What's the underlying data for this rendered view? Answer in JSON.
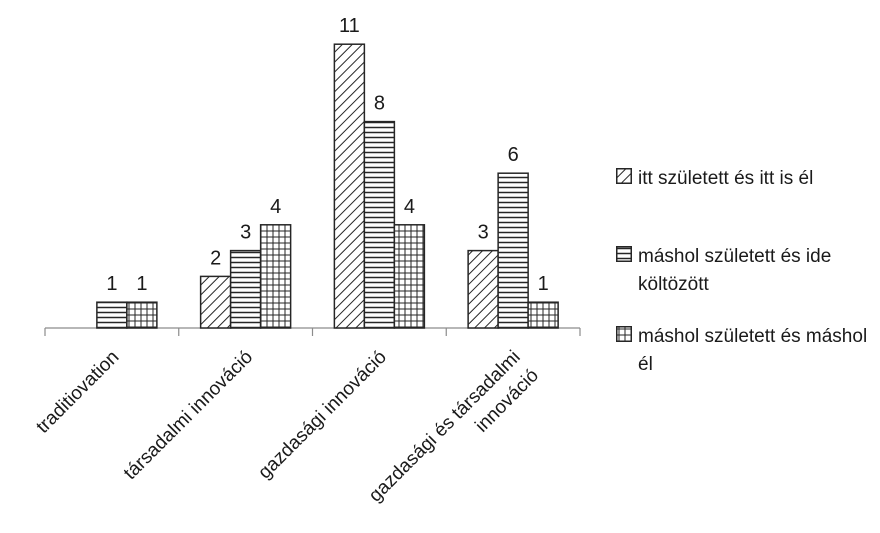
{
  "chart_data": {
    "type": "bar",
    "title": "",
    "xlabel": "",
    "ylabel": "",
    "ylim": [
      0,
      11
    ],
    "grid": false,
    "legend_position": "right",
    "categories": [
      "traditiovation",
      "társadalmi innováció",
      "gazdasági innováció",
      "gazdasági és társadalmi innováció"
    ],
    "category_label_lines": [
      [
        "traditiovation"
      ],
      [
        "társadalmi innováció"
      ],
      [
        "gazdasági innováció"
      ],
      [
        "gazdasági és társadalmi",
        "innováció"
      ]
    ],
    "series": [
      {
        "name": "itt született és itt is él",
        "pattern": "diagonal",
        "values": [
          null,
          2,
          11,
          3
        ]
      },
      {
        "name": "máshol született és ide költözött",
        "pattern": "horizontal",
        "values": [
          1,
          3,
          8,
          6
        ]
      },
      {
        "name": "máshol született és máshol él",
        "pattern": "grid",
        "values": [
          1,
          4,
          4,
          1
        ]
      }
    ],
    "data_labels": [
      [
        "",
        "2",
        "11",
        "3"
      ],
      [
        "1",
        "3",
        "8",
        "6"
      ],
      [
        "1",
        "4",
        "4",
        "1"
      ]
    ],
    "colors": {
      "bar_stroke": "#262626",
      "pattern": "#262626",
      "axis": "#8c8c8c",
      "background": "#ffffff"
    }
  }
}
